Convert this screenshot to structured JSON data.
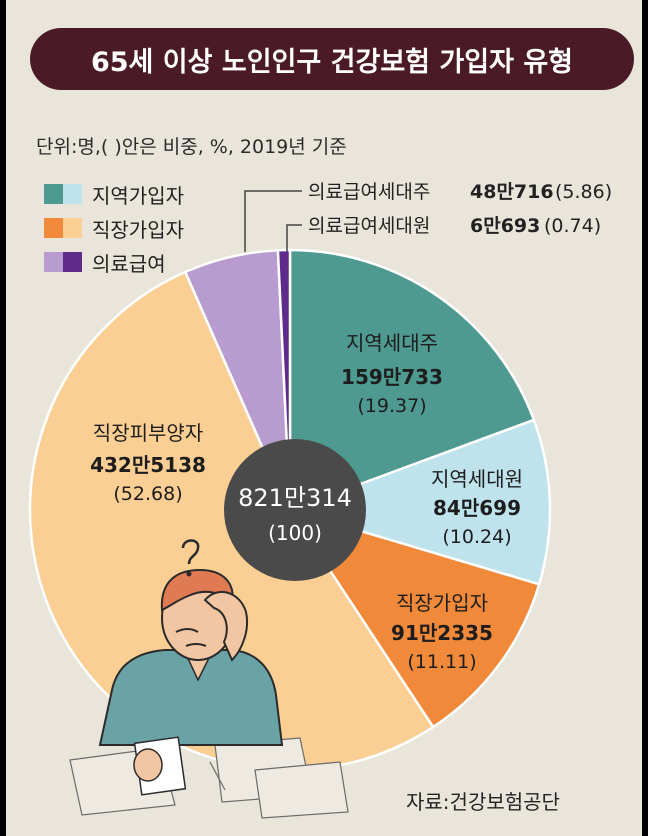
{
  "title": "65세 이상 노인인구 건강보험 가입자 유형",
  "unit_note": "단위:명,( )안은 비중, %, 2019년 기준",
  "source": "자료:건강보험공단",
  "colors": {
    "title_bg": "#4a1b27",
    "background": "#e9e5da",
    "jiyeok_sedaeju": "#4f9a90",
    "jiyeok_sedaewon": "#bfe3ec",
    "jikjang_gaipja": "#f08a3a",
    "jikjang_pibuyangja": "#fbcf93",
    "uiryo_sedaeju": "#b99ccf",
    "uiryo_sedaewon": "#5e2a8c",
    "center": "#4a4a4a"
  },
  "legend": [
    {
      "label": "지역가입자",
      "colors": [
        "#4f9a90",
        "#bfe3ec"
      ]
    },
    {
      "label": "직장가입자",
      "colors": [
        "#f08a3a",
        "#fbcf93"
      ]
    },
    {
      "label": "의료급여",
      "colors": [
        "#b99ccf",
        "#5e2a8c"
      ]
    }
  ],
  "chart_data": {
    "type": "pie",
    "title": "65세 이상 노인인구 건강보험 가입자 유형",
    "unit": "명",
    "total": {
      "value_text": "821만314",
      "percent_text": "(100)",
      "value": 8210314,
      "percent": 100
    },
    "slices": [
      {
        "label": "지역세대주",
        "value_text": "159만733",
        "percent_text": "(19.37)",
        "value": 1590733,
        "percent": 19.37,
        "color": "#4f9a90"
      },
      {
        "label": "지역세대원",
        "value_text": "84만699",
        "percent_text": "(10.24)",
        "value": 840699,
        "percent": 10.24,
        "color": "#bfe3ec"
      },
      {
        "label": "직장가입자",
        "value_text": "91만2335",
        "percent_text": "(11.11)",
        "value": 912335,
        "percent": 11.11,
        "color": "#f08a3a"
      },
      {
        "label": "직장피부양자",
        "value_text": "432만5138",
        "percent_text": "(52.68)",
        "value": 4325138,
        "percent": 52.68,
        "color": "#fbcf93"
      },
      {
        "label": "의료급여세대주",
        "value_text": "48만716",
        "percent_text": "(5.86)",
        "value": 480716,
        "percent": 5.86,
        "color": "#b99ccf"
      },
      {
        "label": "의료급여세대원",
        "value_text": "6만693",
        "percent_text": "(0.74)",
        "value": 60693,
        "percent": 0.74,
        "color": "#5e2a8c"
      }
    ]
  }
}
